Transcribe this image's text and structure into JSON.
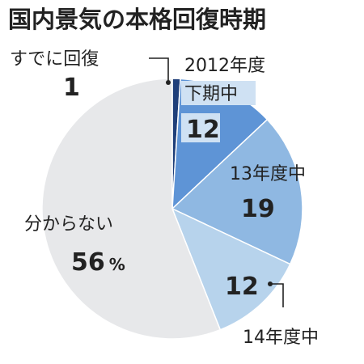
{
  "chart_data": {
    "type": "pie",
    "title": "国内景気の本格回復時期",
    "unit": "%",
    "slices": [
      {
        "label": "すでに回復",
        "value": 1,
        "color": "#1f3f7a"
      },
      {
        "label_lines": [
          "2012年度",
          "下期中"
        ],
        "value": 12,
        "color": "#5e94d6"
      },
      {
        "label": "13年度中",
        "value": 19,
        "color": "#8fb8e2"
      },
      {
        "label": "14年度中",
        "value": 12,
        "color": "#b7d3ec"
      },
      {
        "label": "分からない",
        "value": 56,
        "color": "#e7e8ea"
      }
    ]
  }
}
